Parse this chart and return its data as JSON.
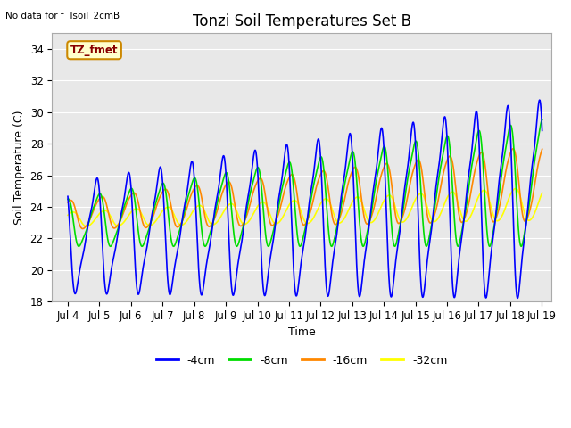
{
  "title": "Tonzi Soil Temperatures Set B",
  "no_data_label": "No data for f_Tsoil_2cmB",
  "tz_fmet_label": "TZ_fmet",
  "xlabel": "Time",
  "ylabel": "Soil Temperature (C)",
  "xlim_days": [
    3.5,
    19.3
  ],
  "ylim": [
    18,
    35
  ],
  "yticks": [
    18,
    20,
    22,
    24,
    26,
    28,
    30,
    32,
    34
  ],
  "xtick_labels": [
    "Jul 4",
    "Jul 5",
    "Jul 6",
    "Jul 7",
    "Jul 8",
    "Jul 9",
    "Jul 10",
    "Jul 11",
    "Jul 12",
    "Jul 13",
    "Jul 14",
    "Jul 15",
    "Jul 16",
    "Jul 17",
    "Jul 18",
    "Jul 19"
  ],
  "xtick_positions": [
    4,
    5,
    6,
    7,
    8,
    9,
    10,
    11,
    12,
    13,
    14,
    15,
    16,
    17,
    18,
    19
  ],
  "line_colors": {
    "4cm": "#0000ff",
    "8cm": "#00dd00",
    "16cm": "#ff8800",
    "32cm": "#ffff00"
  },
  "legend_labels": [
    "-4cm",
    "-8cm",
    "-16cm",
    "-32cm"
  ],
  "background_color": "#e8e8e8",
  "title_fontsize": 12,
  "label_fontsize": 9,
  "tick_fontsize": 8.5
}
